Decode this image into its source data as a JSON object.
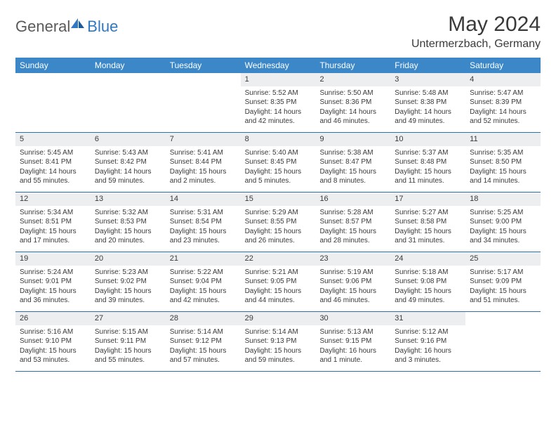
{
  "logo": {
    "text1": "General",
    "text2": "Blue"
  },
  "title": "May 2024",
  "location": "Untermerzbach, Germany",
  "colors": {
    "header_bg": "#3b87c8",
    "header_text": "#ffffff",
    "daynum_bg": "#eceef0",
    "border": "#2f6faa",
    "body_text": "#3a3a3a",
    "logo_gray": "#5a5a5a",
    "logo_blue": "#2f78c3"
  },
  "day_names": [
    "Sunday",
    "Monday",
    "Tuesday",
    "Wednesday",
    "Thursday",
    "Friday",
    "Saturday"
  ],
  "weeks": [
    [
      {
        "n": "",
        "sr": "",
        "ss": "",
        "dl": ""
      },
      {
        "n": "",
        "sr": "",
        "ss": "",
        "dl": ""
      },
      {
        "n": "",
        "sr": "",
        "ss": "",
        "dl": ""
      },
      {
        "n": "1",
        "sr": "Sunrise: 5:52 AM",
        "ss": "Sunset: 8:35 PM",
        "dl": "Daylight: 14 hours and 42 minutes."
      },
      {
        "n": "2",
        "sr": "Sunrise: 5:50 AM",
        "ss": "Sunset: 8:36 PM",
        "dl": "Daylight: 14 hours and 46 minutes."
      },
      {
        "n": "3",
        "sr": "Sunrise: 5:48 AM",
        "ss": "Sunset: 8:38 PM",
        "dl": "Daylight: 14 hours and 49 minutes."
      },
      {
        "n": "4",
        "sr": "Sunrise: 5:47 AM",
        "ss": "Sunset: 8:39 PM",
        "dl": "Daylight: 14 hours and 52 minutes."
      }
    ],
    [
      {
        "n": "5",
        "sr": "Sunrise: 5:45 AM",
        "ss": "Sunset: 8:41 PM",
        "dl": "Daylight: 14 hours and 55 minutes."
      },
      {
        "n": "6",
        "sr": "Sunrise: 5:43 AM",
        "ss": "Sunset: 8:42 PM",
        "dl": "Daylight: 14 hours and 59 minutes."
      },
      {
        "n": "7",
        "sr": "Sunrise: 5:41 AM",
        "ss": "Sunset: 8:44 PM",
        "dl": "Daylight: 15 hours and 2 minutes."
      },
      {
        "n": "8",
        "sr": "Sunrise: 5:40 AM",
        "ss": "Sunset: 8:45 PM",
        "dl": "Daylight: 15 hours and 5 minutes."
      },
      {
        "n": "9",
        "sr": "Sunrise: 5:38 AM",
        "ss": "Sunset: 8:47 PM",
        "dl": "Daylight: 15 hours and 8 minutes."
      },
      {
        "n": "10",
        "sr": "Sunrise: 5:37 AM",
        "ss": "Sunset: 8:48 PM",
        "dl": "Daylight: 15 hours and 11 minutes."
      },
      {
        "n": "11",
        "sr": "Sunrise: 5:35 AM",
        "ss": "Sunset: 8:50 PM",
        "dl": "Daylight: 15 hours and 14 minutes."
      }
    ],
    [
      {
        "n": "12",
        "sr": "Sunrise: 5:34 AM",
        "ss": "Sunset: 8:51 PM",
        "dl": "Daylight: 15 hours and 17 minutes."
      },
      {
        "n": "13",
        "sr": "Sunrise: 5:32 AM",
        "ss": "Sunset: 8:53 PM",
        "dl": "Daylight: 15 hours and 20 minutes."
      },
      {
        "n": "14",
        "sr": "Sunrise: 5:31 AM",
        "ss": "Sunset: 8:54 PM",
        "dl": "Daylight: 15 hours and 23 minutes."
      },
      {
        "n": "15",
        "sr": "Sunrise: 5:29 AM",
        "ss": "Sunset: 8:55 PM",
        "dl": "Daylight: 15 hours and 26 minutes."
      },
      {
        "n": "16",
        "sr": "Sunrise: 5:28 AM",
        "ss": "Sunset: 8:57 PM",
        "dl": "Daylight: 15 hours and 28 minutes."
      },
      {
        "n": "17",
        "sr": "Sunrise: 5:27 AM",
        "ss": "Sunset: 8:58 PM",
        "dl": "Daylight: 15 hours and 31 minutes."
      },
      {
        "n": "18",
        "sr": "Sunrise: 5:25 AM",
        "ss": "Sunset: 9:00 PM",
        "dl": "Daylight: 15 hours and 34 minutes."
      }
    ],
    [
      {
        "n": "19",
        "sr": "Sunrise: 5:24 AM",
        "ss": "Sunset: 9:01 PM",
        "dl": "Daylight: 15 hours and 36 minutes."
      },
      {
        "n": "20",
        "sr": "Sunrise: 5:23 AM",
        "ss": "Sunset: 9:02 PM",
        "dl": "Daylight: 15 hours and 39 minutes."
      },
      {
        "n": "21",
        "sr": "Sunrise: 5:22 AM",
        "ss": "Sunset: 9:04 PM",
        "dl": "Daylight: 15 hours and 42 minutes."
      },
      {
        "n": "22",
        "sr": "Sunrise: 5:21 AM",
        "ss": "Sunset: 9:05 PM",
        "dl": "Daylight: 15 hours and 44 minutes."
      },
      {
        "n": "23",
        "sr": "Sunrise: 5:19 AM",
        "ss": "Sunset: 9:06 PM",
        "dl": "Daylight: 15 hours and 46 minutes."
      },
      {
        "n": "24",
        "sr": "Sunrise: 5:18 AM",
        "ss": "Sunset: 9:08 PM",
        "dl": "Daylight: 15 hours and 49 minutes."
      },
      {
        "n": "25",
        "sr": "Sunrise: 5:17 AM",
        "ss": "Sunset: 9:09 PM",
        "dl": "Daylight: 15 hours and 51 minutes."
      }
    ],
    [
      {
        "n": "26",
        "sr": "Sunrise: 5:16 AM",
        "ss": "Sunset: 9:10 PM",
        "dl": "Daylight: 15 hours and 53 minutes."
      },
      {
        "n": "27",
        "sr": "Sunrise: 5:15 AM",
        "ss": "Sunset: 9:11 PM",
        "dl": "Daylight: 15 hours and 55 minutes."
      },
      {
        "n": "28",
        "sr": "Sunrise: 5:14 AM",
        "ss": "Sunset: 9:12 PM",
        "dl": "Daylight: 15 hours and 57 minutes."
      },
      {
        "n": "29",
        "sr": "Sunrise: 5:14 AM",
        "ss": "Sunset: 9:13 PM",
        "dl": "Daylight: 15 hours and 59 minutes."
      },
      {
        "n": "30",
        "sr": "Sunrise: 5:13 AM",
        "ss": "Sunset: 9:15 PM",
        "dl": "Daylight: 16 hours and 1 minute."
      },
      {
        "n": "31",
        "sr": "Sunrise: 5:12 AM",
        "ss": "Sunset: 9:16 PM",
        "dl": "Daylight: 16 hours and 3 minutes."
      },
      {
        "n": "",
        "sr": "",
        "ss": "",
        "dl": ""
      }
    ]
  ]
}
